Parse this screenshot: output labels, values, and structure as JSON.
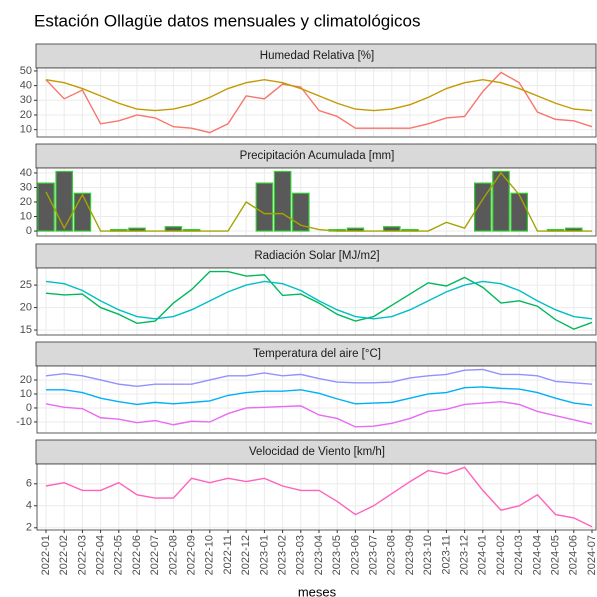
{
  "title": "Estación Ollagüe datos mensuales y climatológicos",
  "chart_data": [
    {
      "type": "line",
      "title": "Humedad Relativa [%]",
      "ylim": [
        5,
        52
      ],
      "yticks": [
        10,
        20,
        30,
        40,
        50
      ],
      "grid": true,
      "series": [
        {
          "color": "#f8766d",
          "values": [
            44,
            31,
            37,
            14,
            16,
            20,
            18,
            12,
            11,
            8,
            14,
            33,
            31,
            41,
            39,
            23,
            19,
            11,
            11,
            11,
            11,
            14,
            18,
            19,
            36,
            49,
            42,
            22,
            17,
            16,
            12
          ]
        },
        {
          "color": "#c49a00",
          "values": [
            44,
            42,
            38,
            33,
            28,
            24,
            23,
            24,
            27,
            32,
            38,
            42,
            44,
            42,
            38,
            33,
            28,
            24,
            23,
            24,
            27,
            32,
            38,
            42,
            44,
            42,
            38,
            33,
            28,
            24,
            23
          ]
        }
      ]
    },
    {
      "type": "bar",
      "title": "Precipitación Acumulada [mm]",
      "ylim": [
        -3.4,
        43.4
      ],
      "yticks": [
        0,
        10,
        20,
        30,
        40
      ],
      "grid": true,
      "series": [
        {
          "type": "bar",
          "color": "#595959",
          "edgecolor": "#33cc33",
          "values": [
            33,
            41,
            26,
            0,
            1,
            2,
            0,
            3,
            1,
            0,
            0,
            0,
            33,
            41,
            26,
            0,
            1,
            2,
            0,
            3,
            1,
            0,
            0,
            0,
            33,
            41,
            26,
            0,
            1,
            2,
            0
          ]
        },
        {
          "type": "line",
          "color": "#a3a500",
          "values": [
            27,
            2,
            25,
            0,
            0,
            0,
            0,
            0,
            0,
            0,
            0,
            20,
            12,
            12,
            4,
            1,
            0,
            0,
            0,
            0,
            0,
            0,
            6,
            2,
            22,
            40,
            25,
            0,
            0,
            0,
            0
          ]
        }
      ]
    },
    {
      "type": "line",
      "title": "Radiación Solar [MJ/m2]",
      "ylim": [
        13.9,
        28.8
      ],
      "yticks": [
        15,
        20,
        25
      ],
      "grid": true,
      "series": [
        {
          "color": "#00b85c",
          "values": [
            23.2,
            22.8,
            23,
            20,
            18.5,
            16.5,
            17,
            21,
            24,
            28,
            28,
            27,
            27.3,
            22.7,
            23,
            21,
            18.5,
            17,
            18,
            20.5,
            23,
            25.5,
            24.8,
            26.7,
            24.5,
            21,
            21.5,
            20.3,
            17.3,
            15.2,
            16.7
          ]
        },
        {
          "color": "#00bfc4",
          "values": [
            25.8,
            25.3,
            23.8,
            21.5,
            19.5,
            18,
            17.5,
            18,
            19.5,
            21.5,
            23.5,
            25,
            25.8,
            25.3,
            23.8,
            21.5,
            19.5,
            18,
            17.5,
            18,
            19.5,
            21.5,
            23.5,
            25,
            25.8,
            25.3,
            23.8,
            21.5,
            19.5,
            18,
            17.5
          ]
        }
      ]
    },
    {
      "type": "line",
      "title": "Temperatura del aire [°C]",
      "ylim": [
        -17.9,
        30
      ],
      "yticks": [
        -10,
        0,
        10,
        20
      ],
      "grid": true,
      "series": [
        {
          "color": "#9590ff",
          "values": [
            23,
            24.5,
            23,
            20,
            17,
            15.5,
            17,
            17,
            17,
            20,
            23,
            23,
            25,
            23,
            24,
            21,
            18.5,
            18,
            18,
            18.5,
            21.5,
            23,
            24,
            27,
            27.5,
            24,
            24,
            23,
            19,
            18,
            17
          ]
        },
        {
          "color": "#00b0f6",
          "values": [
            13,
            13,
            11,
            7,
            4.5,
            2.5,
            4,
            3,
            4,
            5,
            9,
            11,
            12,
            12,
            13,
            10.5,
            6.5,
            3,
            3.5,
            4,
            7,
            10,
            11,
            14.5,
            15,
            14,
            13.5,
            11,
            7,
            3.5,
            2
          ]
        },
        {
          "color": "#e76bf3",
          "values": [
            3,
            0.5,
            -0.5,
            -7,
            -8,
            -10.5,
            -9,
            -12,
            -9.5,
            -10,
            -4,
            0,
            0.5,
            1,
            1.5,
            -5,
            -7.5,
            -13.5,
            -13,
            -11,
            -7.5,
            -2.5,
            -1,
            2.5,
            3.5,
            4.5,
            2.5,
            -2.5,
            -5.5,
            -8.5,
            -11.5
          ]
        }
      ]
    },
    {
      "type": "line",
      "title": "Velocidad de Viento [km/h]",
      "ylim": [
        1.8,
        7.8
      ],
      "yticks": [
        2,
        4,
        6
      ],
      "grid": true,
      "xlabel": "meses",
      "categories": [
        "2022-01",
        "2022-02",
        "2022-03",
        "2022-04",
        "2022-05",
        "2022-06",
        "2022-07",
        "2022-08",
        "2022-09",
        "2022-10",
        "2022-11",
        "2022-12",
        "2023-01",
        "2023-02",
        "2023-03",
        "2023-04",
        "2023-05",
        "2023-06",
        "2023-07",
        "2023-08",
        "2023-09",
        "2023-10",
        "2023-11",
        "2023-12",
        "2024-01",
        "2024-02",
        "2024-03",
        "2024-04",
        "2024-05",
        "2024-06",
        "2024-07"
      ],
      "series": [
        {
          "color": "#ff62bc",
          "values": [
            5.8,
            6.1,
            5.4,
            5.4,
            6.1,
            5,
            4.7,
            4.7,
            6.5,
            6.1,
            6.5,
            6.2,
            6.5,
            5.8,
            5.4,
            5.4,
            4.4,
            3.2,
            4,
            5.1,
            6.2,
            7.2,
            6.9,
            7.5,
            5.4,
            3.6,
            4,
            5,
            3.2,
            2.9,
            2.1
          ]
        }
      ]
    }
  ]
}
